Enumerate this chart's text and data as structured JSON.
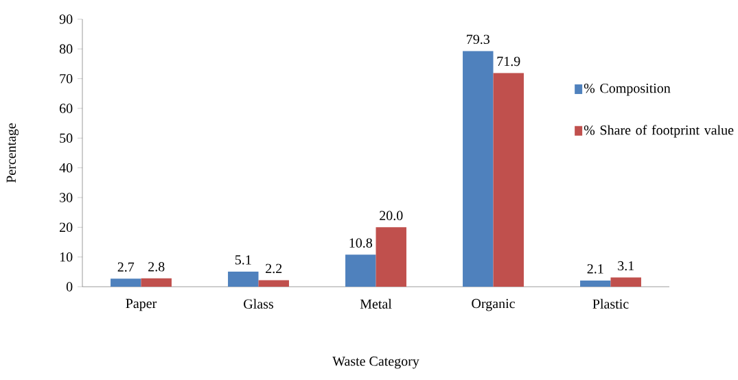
{
  "chart_data": {
    "type": "bar",
    "xlabel": "Waste Category",
    "ylabel": "Percentage",
    "categories": [
      "Paper",
      "Glass",
      "Metal",
      "Organic",
      "Plastic"
    ],
    "series": [
      {
        "name": "% Composition",
        "color": "#4f81bd",
        "values": [
          2.7,
          5.1,
          10.8,
          79.3,
          2.1
        ],
        "value_labels": [
          "2.7",
          "5.1",
          "10.8",
          "79.3",
          "2.1"
        ]
      },
      {
        "name": "% Share of footprint value",
        "color": "#c0504d",
        "values": [
          2.8,
          2.2,
          20.0,
          71.9,
          3.1
        ],
        "value_labels": [
          "2.8",
          "2.2",
          "20.0",
          "71.9",
          "3.1"
        ]
      }
    ],
    "ylim": [
      0,
      90
    ],
    "yticks": [
      0,
      10,
      20,
      30,
      40,
      50,
      60,
      70,
      80,
      90
    ],
    "grid": false,
    "legend": "right"
  }
}
